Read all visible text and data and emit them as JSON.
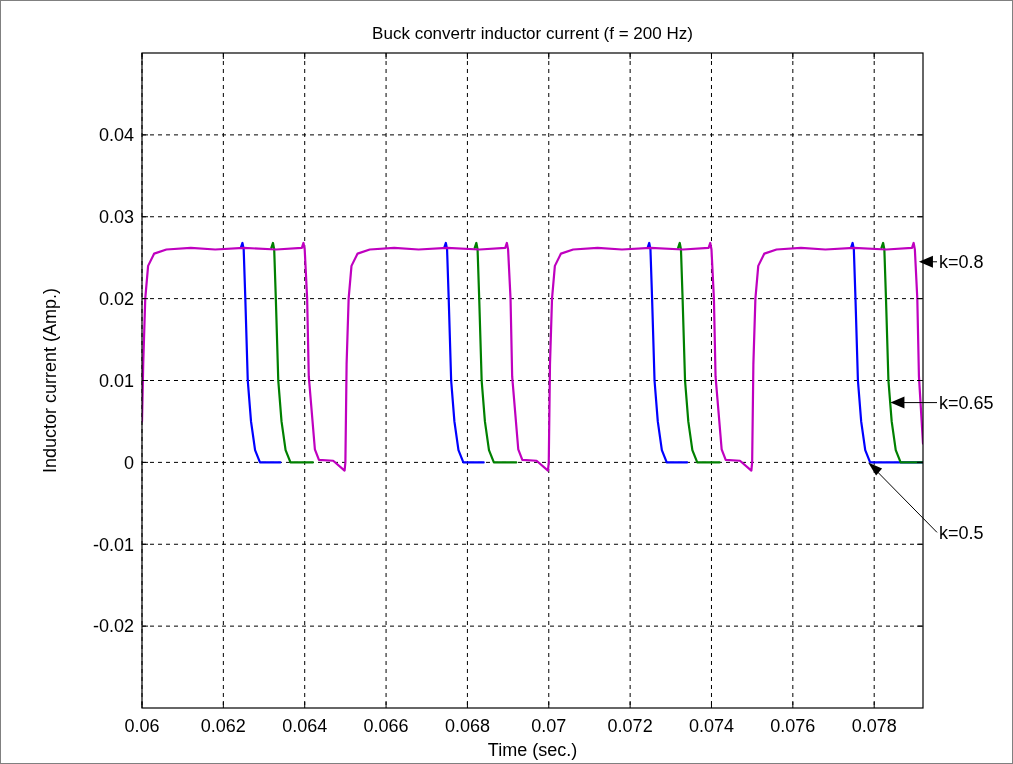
{
  "chart_data": {
    "type": "line",
    "title": "Buck convertr inductor current (f = 200 Hz)",
    "xlabel": "Time (sec.)",
    "ylabel": "Inductor current (Amp.)",
    "xlim": [
      0.06,
      0.0792
    ],
    "ylim": [
      -0.03,
      0.05
    ],
    "xticks": [
      0.06,
      0.062,
      0.064,
      0.066,
      0.068,
      0.07,
      0.072,
      0.074,
      0.076,
      0.078
    ],
    "yticks": [
      -0.02,
      -0.01,
      0,
      0.01,
      0.02,
      0.03,
      0.04
    ],
    "grid": true,
    "line_style": "solid",
    "marker": "none",
    "annotations": [
      {
        "text": "k=0.8",
        "x": 0.0791,
        "y": 0.0245
      },
      {
        "text": "k=0.65",
        "x": 0.0784,
        "y": 0.0073
      },
      {
        "text": "k=0.5",
        "x": 0.07785,
        "y": 0
      }
    ],
    "series": [
      {
        "color": "#0000ff",
        "x": [
          0.06243,
          0.06247,
          0.0625,
          0.06254,
          0.0626,
          0.06268,
          0.06278,
          0.0629,
          0.0634,
          0.065,
          0.06503,
          0.06508,
          0.06515,
          0.0653,
          0.0656,
          0.0662,
          0.0668,
          0.06743,
          0.06747,
          0.0675,
          0.06754,
          0.0676,
          0.06768,
          0.06778,
          0.0679,
          0.0684,
          0.07,
          0.07003,
          0.07008,
          0.07015,
          0.0703,
          0.0706,
          0.0712,
          0.0718,
          0.07243,
          0.07247,
          0.0725,
          0.07254,
          0.0726,
          0.07268,
          0.07278,
          0.0729,
          0.0734,
          0.075,
          0.07503,
          0.07508,
          0.07515,
          0.0753,
          0.0756,
          0.0762,
          0.0768,
          0.07743,
          0.07747,
          0.0775,
          0.07754,
          0.0776,
          0.07768,
          0.07778,
          0.0779,
          0.0792
        ],
        "values": [
          0.0262,
          0.0268,
          0.026,
          0.02,
          0.01,
          0.005,
          0.0015,
          0,
          0,
          null,
          null,
          null,
          null,
          null,
          null,
          null,
          null,
          0.0262,
          0.0268,
          0.026,
          0.02,
          0.01,
          0.005,
          0.0015,
          0,
          0,
          null,
          null,
          null,
          null,
          null,
          null,
          null,
          null,
          0.0262,
          0.0268,
          0.026,
          0.02,
          0.01,
          0.005,
          0.0015,
          0,
          0,
          null,
          null,
          null,
          null,
          null,
          null,
          null,
          null,
          0.0262,
          0.0268,
          0.026,
          0.02,
          0.01,
          0.005,
          0.0015,
          0,
          0
        ]
      },
      {
        "color": "#008000",
        "x": [
          0.06318,
          0.06322,
          0.06325,
          0.06329,
          0.06335,
          0.06343,
          0.06353,
          0.06365,
          0.0642,
          0.0645,
          0.06818,
          0.06822,
          0.06825,
          0.06829,
          0.06835,
          0.06843,
          0.06853,
          0.06865,
          0.0692,
          0.0695,
          0.07318,
          0.07322,
          0.07325,
          0.07329,
          0.07335,
          0.07343,
          0.07353,
          0.07365,
          0.0742,
          0.0745,
          0.07818,
          0.07822,
          0.07825,
          0.07829,
          0.07835,
          0.07843,
          0.07853,
          0.07865,
          0.0792
        ],
        "values": [
          0.0262,
          0.0268,
          0.026,
          0.02,
          0.01,
          0.005,
          0.0015,
          0,
          0,
          null,
          0.0262,
          0.0268,
          0.026,
          0.02,
          0.01,
          0.005,
          0.0015,
          0,
          0,
          null,
          0.0262,
          0.0268,
          0.026,
          0.02,
          0.01,
          0.005,
          0.0015,
          0,
          0,
          null,
          0.0262,
          0.0268,
          0.026,
          0.02,
          0.01,
          0.005,
          0.0015,
          0,
          0
        ]
      },
      {
        "color": "#bf00bf",
        "x": [
          0.06,
          0.06003,
          0.06008,
          0.06015,
          0.0603,
          0.0606,
          0.0612,
          0.0618,
          0.0625,
          0.0633,
          0.06393,
          0.06397,
          0.064,
          0.06406,
          0.0641,
          0.06425,
          0.06435,
          0.0647,
          0.06498,
          0.065,
          0.06503,
          0.06508,
          0.06515,
          0.0653,
          0.0656,
          0.0662,
          0.0668,
          0.0675,
          0.0683,
          0.06893,
          0.06897,
          0.069,
          0.06906,
          0.0691,
          0.06925,
          0.06935,
          0.0697,
          0.06998,
          0.07,
          0.07003,
          0.07008,
          0.07015,
          0.0703,
          0.0706,
          0.0712,
          0.0718,
          0.0725,
          0.0733,
          0.07393,
          0.07397,
          0.074,
          0.07406,
          0.0741,
          0.07425,
          0.07435,
          0.0747,
          0.07498,
          0.075,
          0.07503,
          0.07508,
          0.07515,
          0.0753,
          0.0756,
          0.0762,
          0.0768,
          0.0775,
          0.0783,
          0.07893,
          0.07897,
          0.079,
          0.07906,
          0.0791,
          0.0792
        ],
        "values": [
          0.005,
          0.012,
          0.02,
          0.024,
          0.0255,
          0.026,
          0.0262,
          0.026,
          0.0262,
          0.026,
          0.0262,
          0.0268,
          0.026,
          0.02,
          0.0105,
          0.0016,
          0.0003,
          0.0002,
          -0.001,
          0,
          0.012,
          0.02,
          0.024,
          0.0255,
          0.026,
          0.0262,
          0.026,
          0.0262,
          0.026,
          0.0262,
          0.0268,
          0.026,
          0.02,
          0.0105,
          0.0016,
          0.0003,
          0.0002,
          -0.001,
          0,
          0.012,
          0.02,
          0.024,
          0.0255,
          0.026,
          0.0262,
          0.026,
          0.0262,
          0.026,
          0.0262,
          0.0268,
          0.026,
          0.02,
          0.0105,
          0.0016,
          0.0003,
          0.0002,
          -0.001,
          0,
          0.012,
          0.02,
          0.024,
          0.0255,
          0.026,
          0.0262,
          0.026,
          0.0262,
          0.026,
          0.0262,
          0.0268,
          0.026,
          0.02,
          0.0105,
          0.0023
        ]
      }
    ]
  }
}
